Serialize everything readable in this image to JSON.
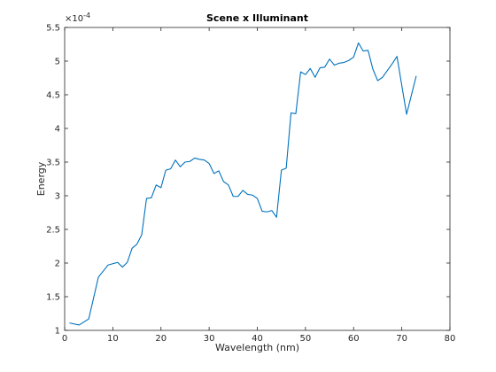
{
  "chart_data": {
    "type": "line",
    "title": "Scene x Illuminant",
    "xlabel": "Wavelength (nm)",
    "ylabel": "Energy",
    "exponent_label": "×10",
    "exponent_value": "-4",
    "xlim": [
      0,
      80
    ],
    "ylim": [
      1,
      5.5
    ],
    "xticks": [
      "0",
      "10",
      "20",
      "30",
      "40",
      "50",
      "60",
      "70",
      "80"
    ],
    "xtick_values": [
      0,
      10,
      20,
      30,
      40,
      50,
      60,
      70,
      80
    ],
    "yticks": [
      "1",
      "1.5",
      "2",
      "2.5",
      "3",
      "3.5",
      "4",
      "4.5",
      "5",
      "5.5"
    ],
    "ytick_values": [
      1,
      1.5,
      2,
      2.5,
      3,
      3.5,
      4,
      4.5,
      5,
      5.5
    ],
    "line_color": "#0072bd",
    "grid": false,
    "series": [
      {
        "x": [
          1,
          3,
          5,
          7,
          9,
          11,
          12,
          13,
          14,
          15,
          16,
          17,
          18,
          19,
          20,
          21,
          22,
          23,
          24,
          25,
          26,
          27,
          28,
          29,
          30,
          31,
          32,
          33,
          34,
          35,
          36,
          37,
          38,
          39,
          40,
          41,
          42,
          43,
          44,
          45,
          46,
          47,
          48,
          49,
          50,
          51,
          52,
          53,
          54,
          55,
          56,
          57,
          58,
          59,
          60,
          61,
          62,
          63,
          64,
          65,
          66,
          67,
          68,
          69,
          71,
          73
        ],
        "y": [
          1.11,
          1.08,
          1.17,
          1.79,
          1.97,
          2.01,
          1.94,
          2.01,
          2.22,
          2.28,
          2.42,
          2.96,
          2.97,
          3.16,
          3.12,
          3.38,
          3.4,
          3.53,
          3.43,
          3.5,
          3.51,
          3.56,
          3.54,
          3.53,
          3.48,
          3.33,
          3.37,
          3.21,
          3.16,
          2.99,
          2.99,
          3.08,
          3.02,
          3.01,
          2.96,
          2.77,
          2.76,
          2.78,
          2.68,
          3.38,
          3.41,
          4.23,
          4.22,
          4.84,
          4.8,
          4.89,
          4.76,
          4.9,
          4.91,
          5.03,
          4.94,
          4.97,
          4.98,
          5.01,
          5.06,
          5.27,
          5.15,
          5.16,
          4.88,
          4.71,
          4.76,
          4.86,
          4.96,
          5.07,
          4.21,
          4.78
        ]
      }
    ]
  }
}
